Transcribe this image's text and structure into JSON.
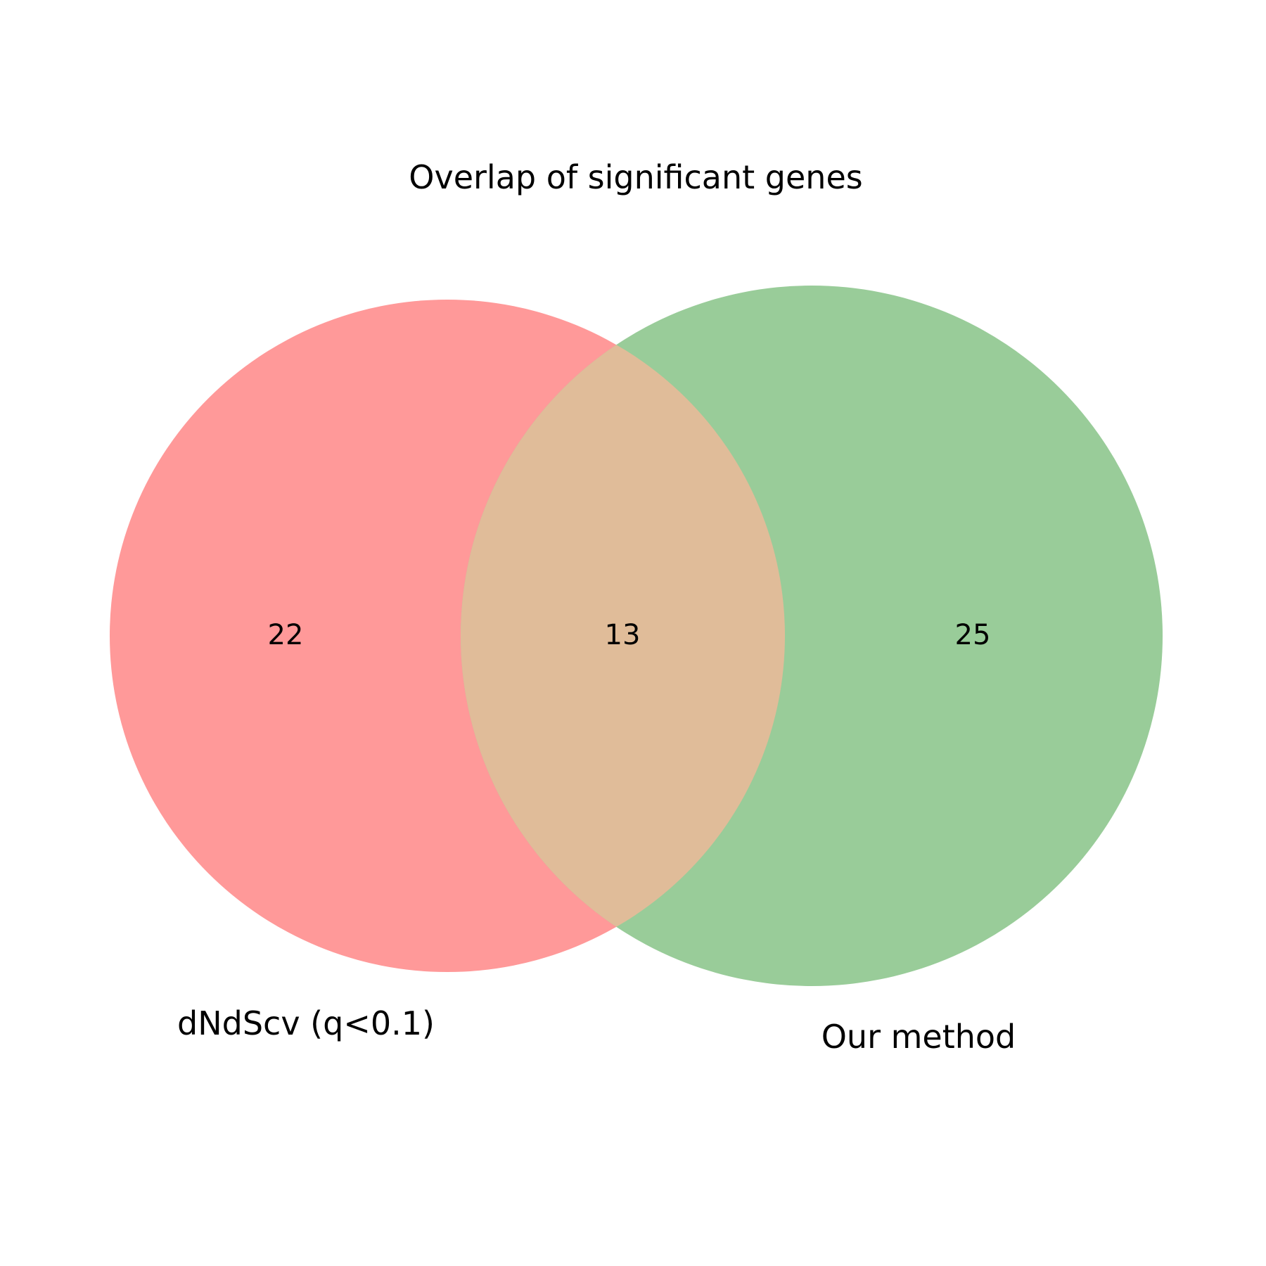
{
  "title": "Overlap of significant genes",
  "sets": [
    {
      "label": "dNdScv (q<0.1)",
      "only_count": "22",
      "color": "#ff9999"
    },
    {
      "label": "Our method",
      "only_count": "25",
      "color": "#99cc99"
    }
  ],
  "overlap": {
    "count": "13",
    "color": "#e0bc99"
  }
}
